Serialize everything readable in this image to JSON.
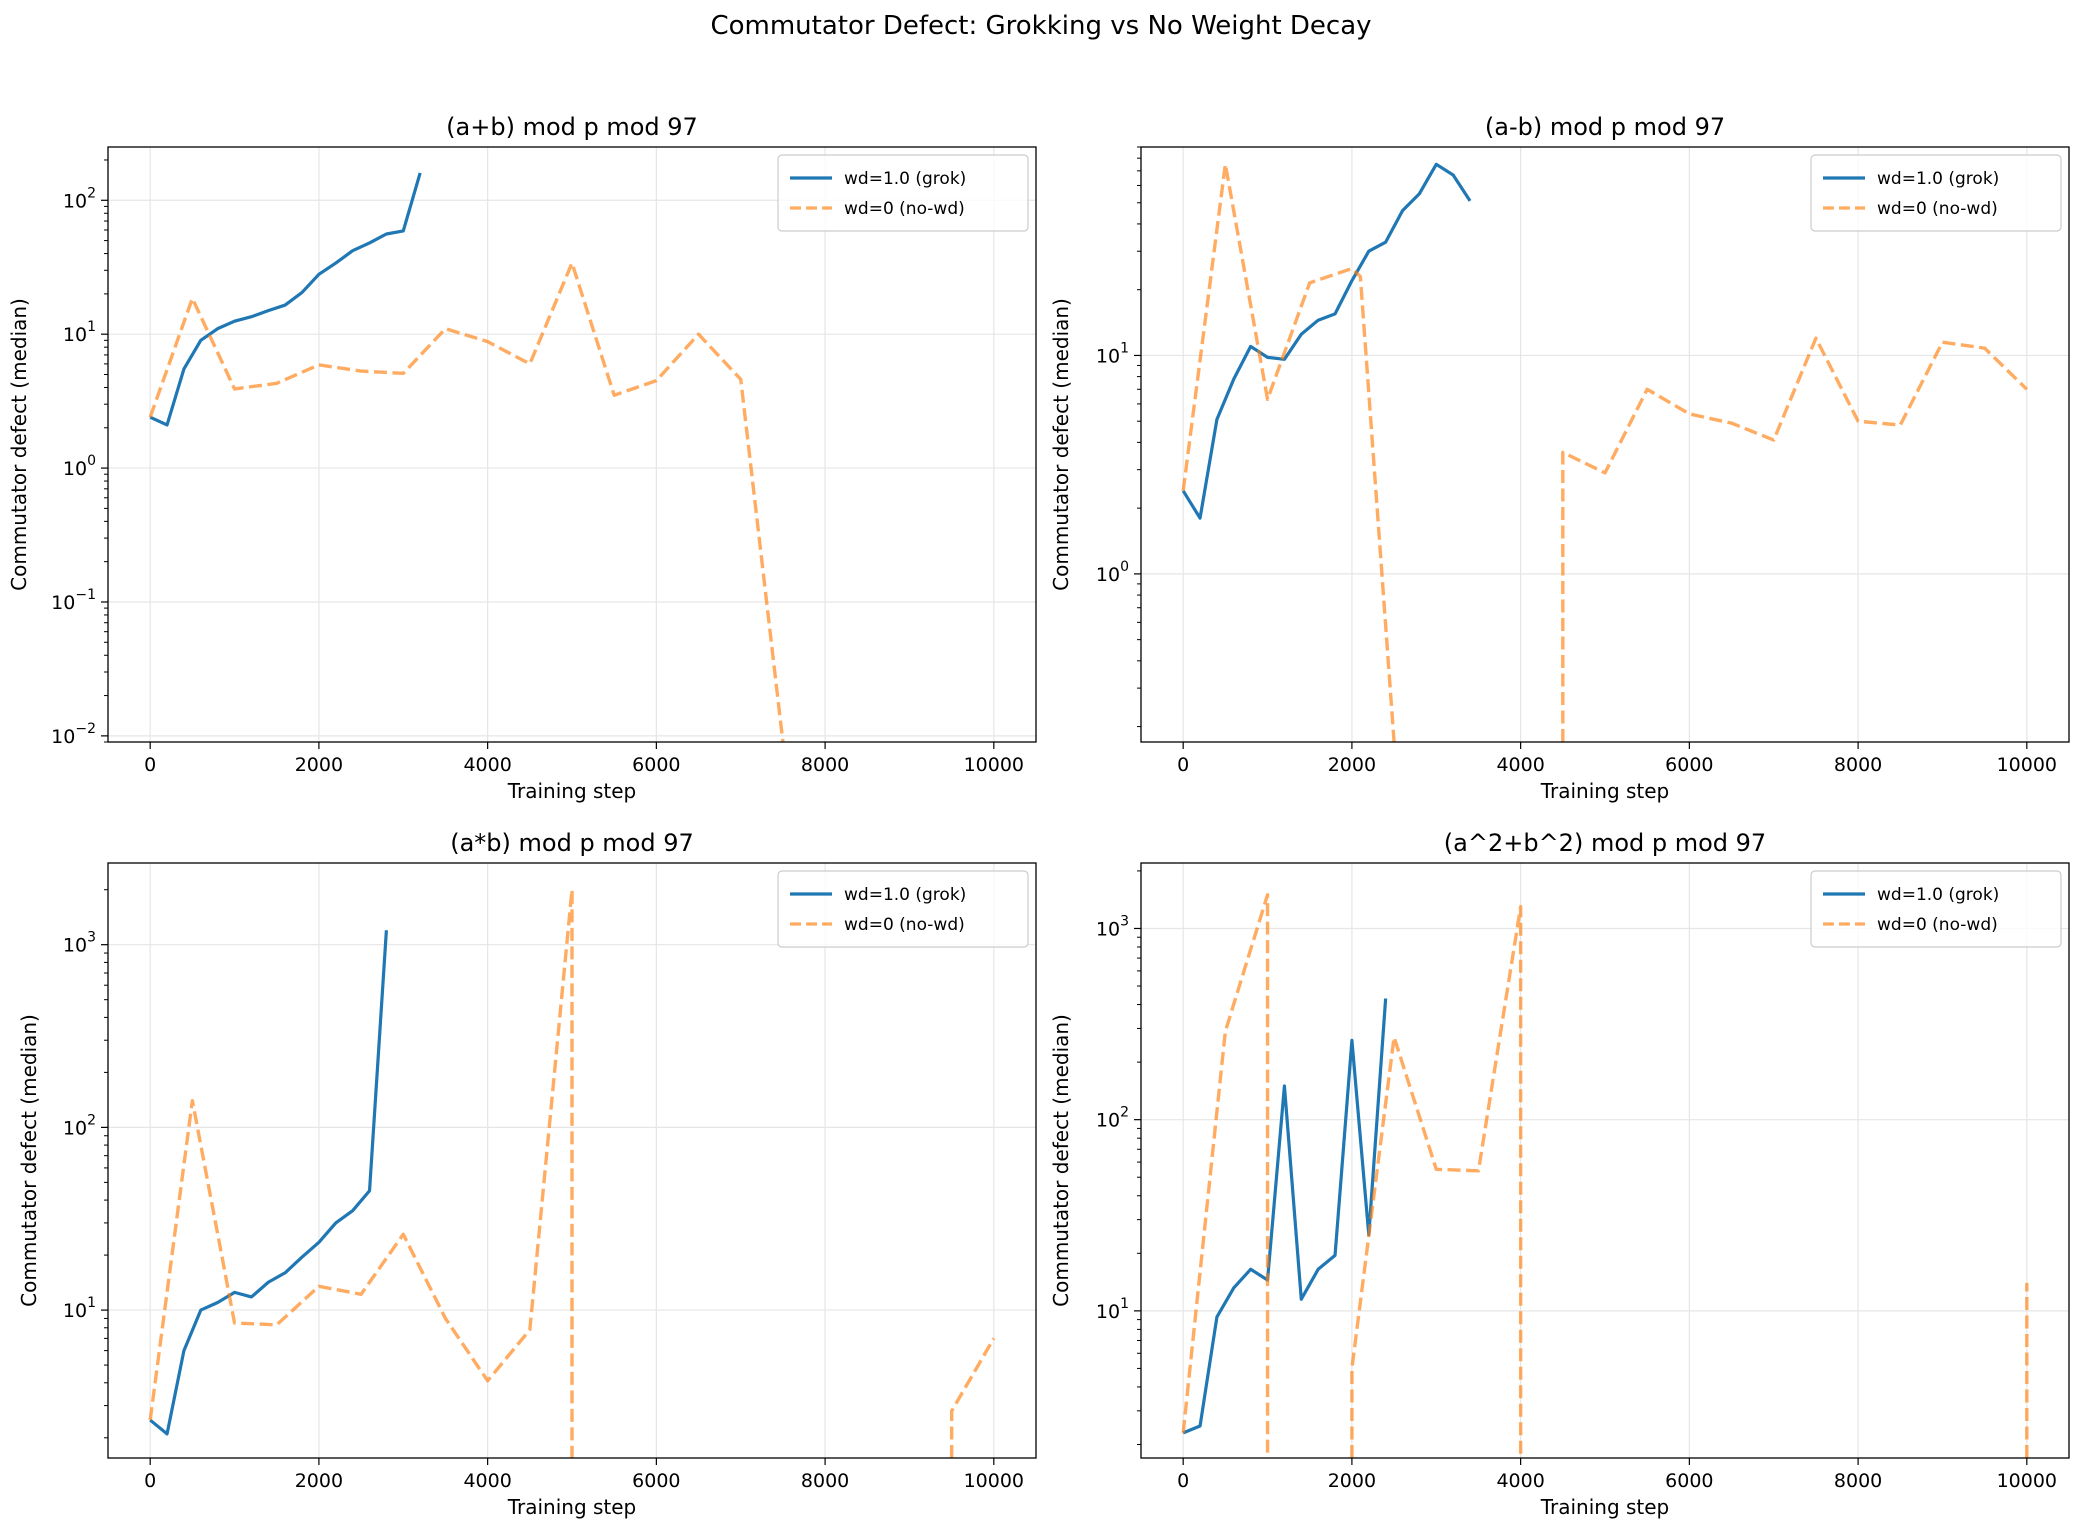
{
  "figure_title": "Commutator Defect: Grokking vs No Weight Decay",
  "colors": {
    "grok": "#1f77b4",
    "nowd": "#ff7f0e",
    "grid": "#e6e6e6",
    "axis": "#000000"
  },
  "chart_data": [
    {
      "type": "line",
      "title": "(a+b) mod p mod 97",
      "xlabel": "Training step",
      "ylabel": "Commutator defect (median)",
      "yscale": "log",
      "xlim": [
        -500,
        10500
      ],
      "ylim": [
        0.009,
        250
      ],
      "xticks": [
        0,
        2000,
        4000,
        6000,
        8000,
        10000
      ],
      "xtick_labels": [
        "0",
        "2000",
        "4000",
        "6000",
        "8000",
        "10000"
      ],
      "yticks": [
        0.01,
        0.1,
        1,
        10,
        100
      ],
      "ytick_labels": [
        {
          "base": "10",
          "exp": "−2"
        },
        {
          "base": "10",
          "exp": "−1"
        },
        {
          "base": "10",
          "exp": "0"
        },
        {
          "base": "10",
          "exp": "1"
        },
        {
          "base": "10",
          "exp": "2"
        }
      ],
      "legend_position": "top-right",
      "series": [
        {
          "name": "wd=1.0 (grok)",
          "style": "solid",
          "x": [
            0,
            200,
            400,
            600,
            800,
            1000,
            1200,
            1400,
            1600,
            1800,
            2000,
            2200,
            2400,
            2600,
            2800,
            3000,
            3200
          ],
          "y": [
            2.4,
            2.1,
            5.5,
            9,
            11,
            12.5,
            13.5,
            15,
            16.5,
            20.5,
            28,
            34,
            42,
            48,
            56,
            59,
            160
          ]
        },
        {
          "name": "wd=0 (no-wd)",
          "style": "dashed",
          "x": [
            0,
            500,
            1000,
            1500,
            2000,
            2500,
            3000,
            3500,
            4000,
            4500,
            5000,
            5500,
            6000,
            6500,
            7000,
            7500
          ],
          "y": [
            2.4,
            18.5,
            3.9,
            4.3,
            5.9,
            5.3,
            5.1,
            11,
            8.8,
            6,
            34,
            3.5,
            4.5,
            10,
            4.6,
            0.009
          ]
        }
      ]
    },
    {
      "type": "line",
      "title": "(a-b) mod p mod 97",
      "xlabel": "Training step",
      "ylabel": "Commutator defect (median)",
      "yscale": "log",
      "xlim": [
        -500,
        10500
      ],
      "ylim": [
        0.17,
        90
      ],
      "xticks": [
        0,
        2000,
        4000,
        6000,
        8000,
        10000
      ],
      "xtick_labels": [
        "0",
        "2000",
        "4000",
        "6000",
        "8000",
        "10000"
      ],
      "yticks": [
        1,
        10
      ],
      "ytick_labels": [
        {
          "base": "10",
          "exp": "0"
        },
        {
          "base": "10",
          "exp": "1"
        }
      ],
      "legend_position": "top-right",
      "series": [
        {
          "name": "wd=1.0 (grok)",
          "style": "solid",
          "x": [
            0,
            200,
            400,
            600,
            800,
            1000,
            1200,
            1400,
            1600,
            1800,
            2000,
            2200,
            2400,
            2600,
            2800,
            3000,
            3200,
            3400
          ],
          "y": [
            2.4,
            1.8,
            5.1,
            7.8,
            11,
            9.8,
            9.6,
            12.5,
            14.5,
            15.5,
            22,
            30,
            33,
            46,
            55,
            75,
            67,
            51
          ]
        },
        {
          "name": "wd=0 (no-wd)",
          "style": "dashed",
          "x": [
            0,
            500,
            1000,
            1500,
            2000,
            2100,
            2500,
            null,
            4500,
            4500,
            5000,
            5500,
            6000,
            6500,
            7000,
            7500,
            8000,
            8500,
            9000,
            9500,
            10000
          ],
          "y": [
            2.4,
            75,
            6.3,
            21.5,
            25,
            23,
            0.17,
            null,
            0.17,
            3.6,
            2.9,
            7,
            5.4,
            4.9,
            4.1,
            12,
            5,
            4.8,
            11.5,
            10.8,
            7
          ]
        }
      ]
    },
    {
      "type": "line",
      "title": "(a*b) mod p mod 97",
      "xlabel": "Training step",
      "ylabel": "Commutator defect (median)",
      "yscale": "log",
      "xlim": [
        -500,
        10500
      ],
      "ylim": [
        1.55,
        2800
      ],
      "xticks": [
        0,
        2000,
        4000,
        6000,
        8000,
        10000
      ],
      "xtick_labels": [
        "0",
        "2000",
        "4000",
        "6000",
        "8000",
        "10000"
      ],
      "yticks": [
        10,
        100,
        1000
      ],
      "ytick_labels": [
        {
          "base": "10",
          "exp": "1"
        },
        {
          "base": "10",
          "exp": "2"
        },
        {
          "base": "10",
          "exp": "3"
        }
      ],
      "legend_position": "top-right",
      "series": [
        {
          "name": "wd=1.0 (grok)",
          "style": "solid",
          "x": [
            0,
            200,
            400,
            600,
            800,
            1000,
            1200,
            1400,
            1600,
            1800,
            2000,
            2200,
            2400,
            2600,
            2800
          ],
          "y": [
            2.5,
            2.1,
            6,
            10,
            11,
            12.5,
            11.8,
            14.2,
            16,
            19.5,
            23.5,
            30,
            35,
            45,
            1200
          ]
        },
        {
          "name": "wd=0 (no-wd)",
          "style": "dashed",
          "x": [
            0,
            500,
            1000,
            1500,
            2000,
            2500,
            3000,
            3500,
            4000,
            4500,
            5000,
            5000,
            null,
            9500,
            9500,
            10000
          ],
          "y": [
            2.5,
            140,
            8.5,
            8.3,
            13.5,
            12.2,
            26,
            9,
            4.1,
            7.8,
            2000,
            1.55,
            null,
            1.55,
            2.8,
            7
          ]
        }
      ]
    },
    {
      "type": "line",
      "title": "(a^2+b^2) mod p mod 97",
      "xlabel": "Training step",
      "ylabel": "Commutator defect (median)",
      "yscale": "log",
      "xlim": [
        -500,
        10500
      ],
      "ylim": [
        1.7,
        2200
      ],
      "xticks": [
        0,
        2000,
        4000,
        6000,
        8000,
        10000
      ],
      "xtick_labels": [
        "0",
        "2000",
        "4000",
        "6000",
        "8000",
        "10000"
      ],
      "yticks": [
        10,
        100,
        1000
      ],
      "ytick_labels": [
        {
          "base": "10",
          "exp": "1"
        },
        {
          "base": "10",
          "exp": "2"
        },
        {
          "base": "10",
          "exp": "3"
        }
      ],
      "legend_position": "top-right",
      "series": [
        {
          "name": "wd=1.0 (grok)",
          "style": "solid",
          "x": [
            0,
            200,
            400,
            600,
            800,
            1000,
            1200,
            1400,
            1600,
            1800,
            2000,
            2200,
            2400
          ],
          "y": [
            2.3,
            2.5,
            9.3,
            13.2,
            16.5,
            14.5,
            150,
            11.5,
            16.5,
            19.5,
            260,
            25,
            430
          ]
        },
        {
          "name": "wd=0 (no-wd)",
          "style": "dashed",
          "x": [
            0,
            500,
            1000,
            1000,
            null,
            2000,
            2000,
            2500,
            3000,
            3500,
            4000,
            4000,
            null,
            10000,
            10000
          ],
          "y": [
            2.3,
            290,
            1500,
            1.7,
            null,
            1.7,
            5,
            270,
            55,
            54,
            1300,
            1.7,
            null,
            1.7,
            14
          ]
        }
      ]
    }
  ]
}
